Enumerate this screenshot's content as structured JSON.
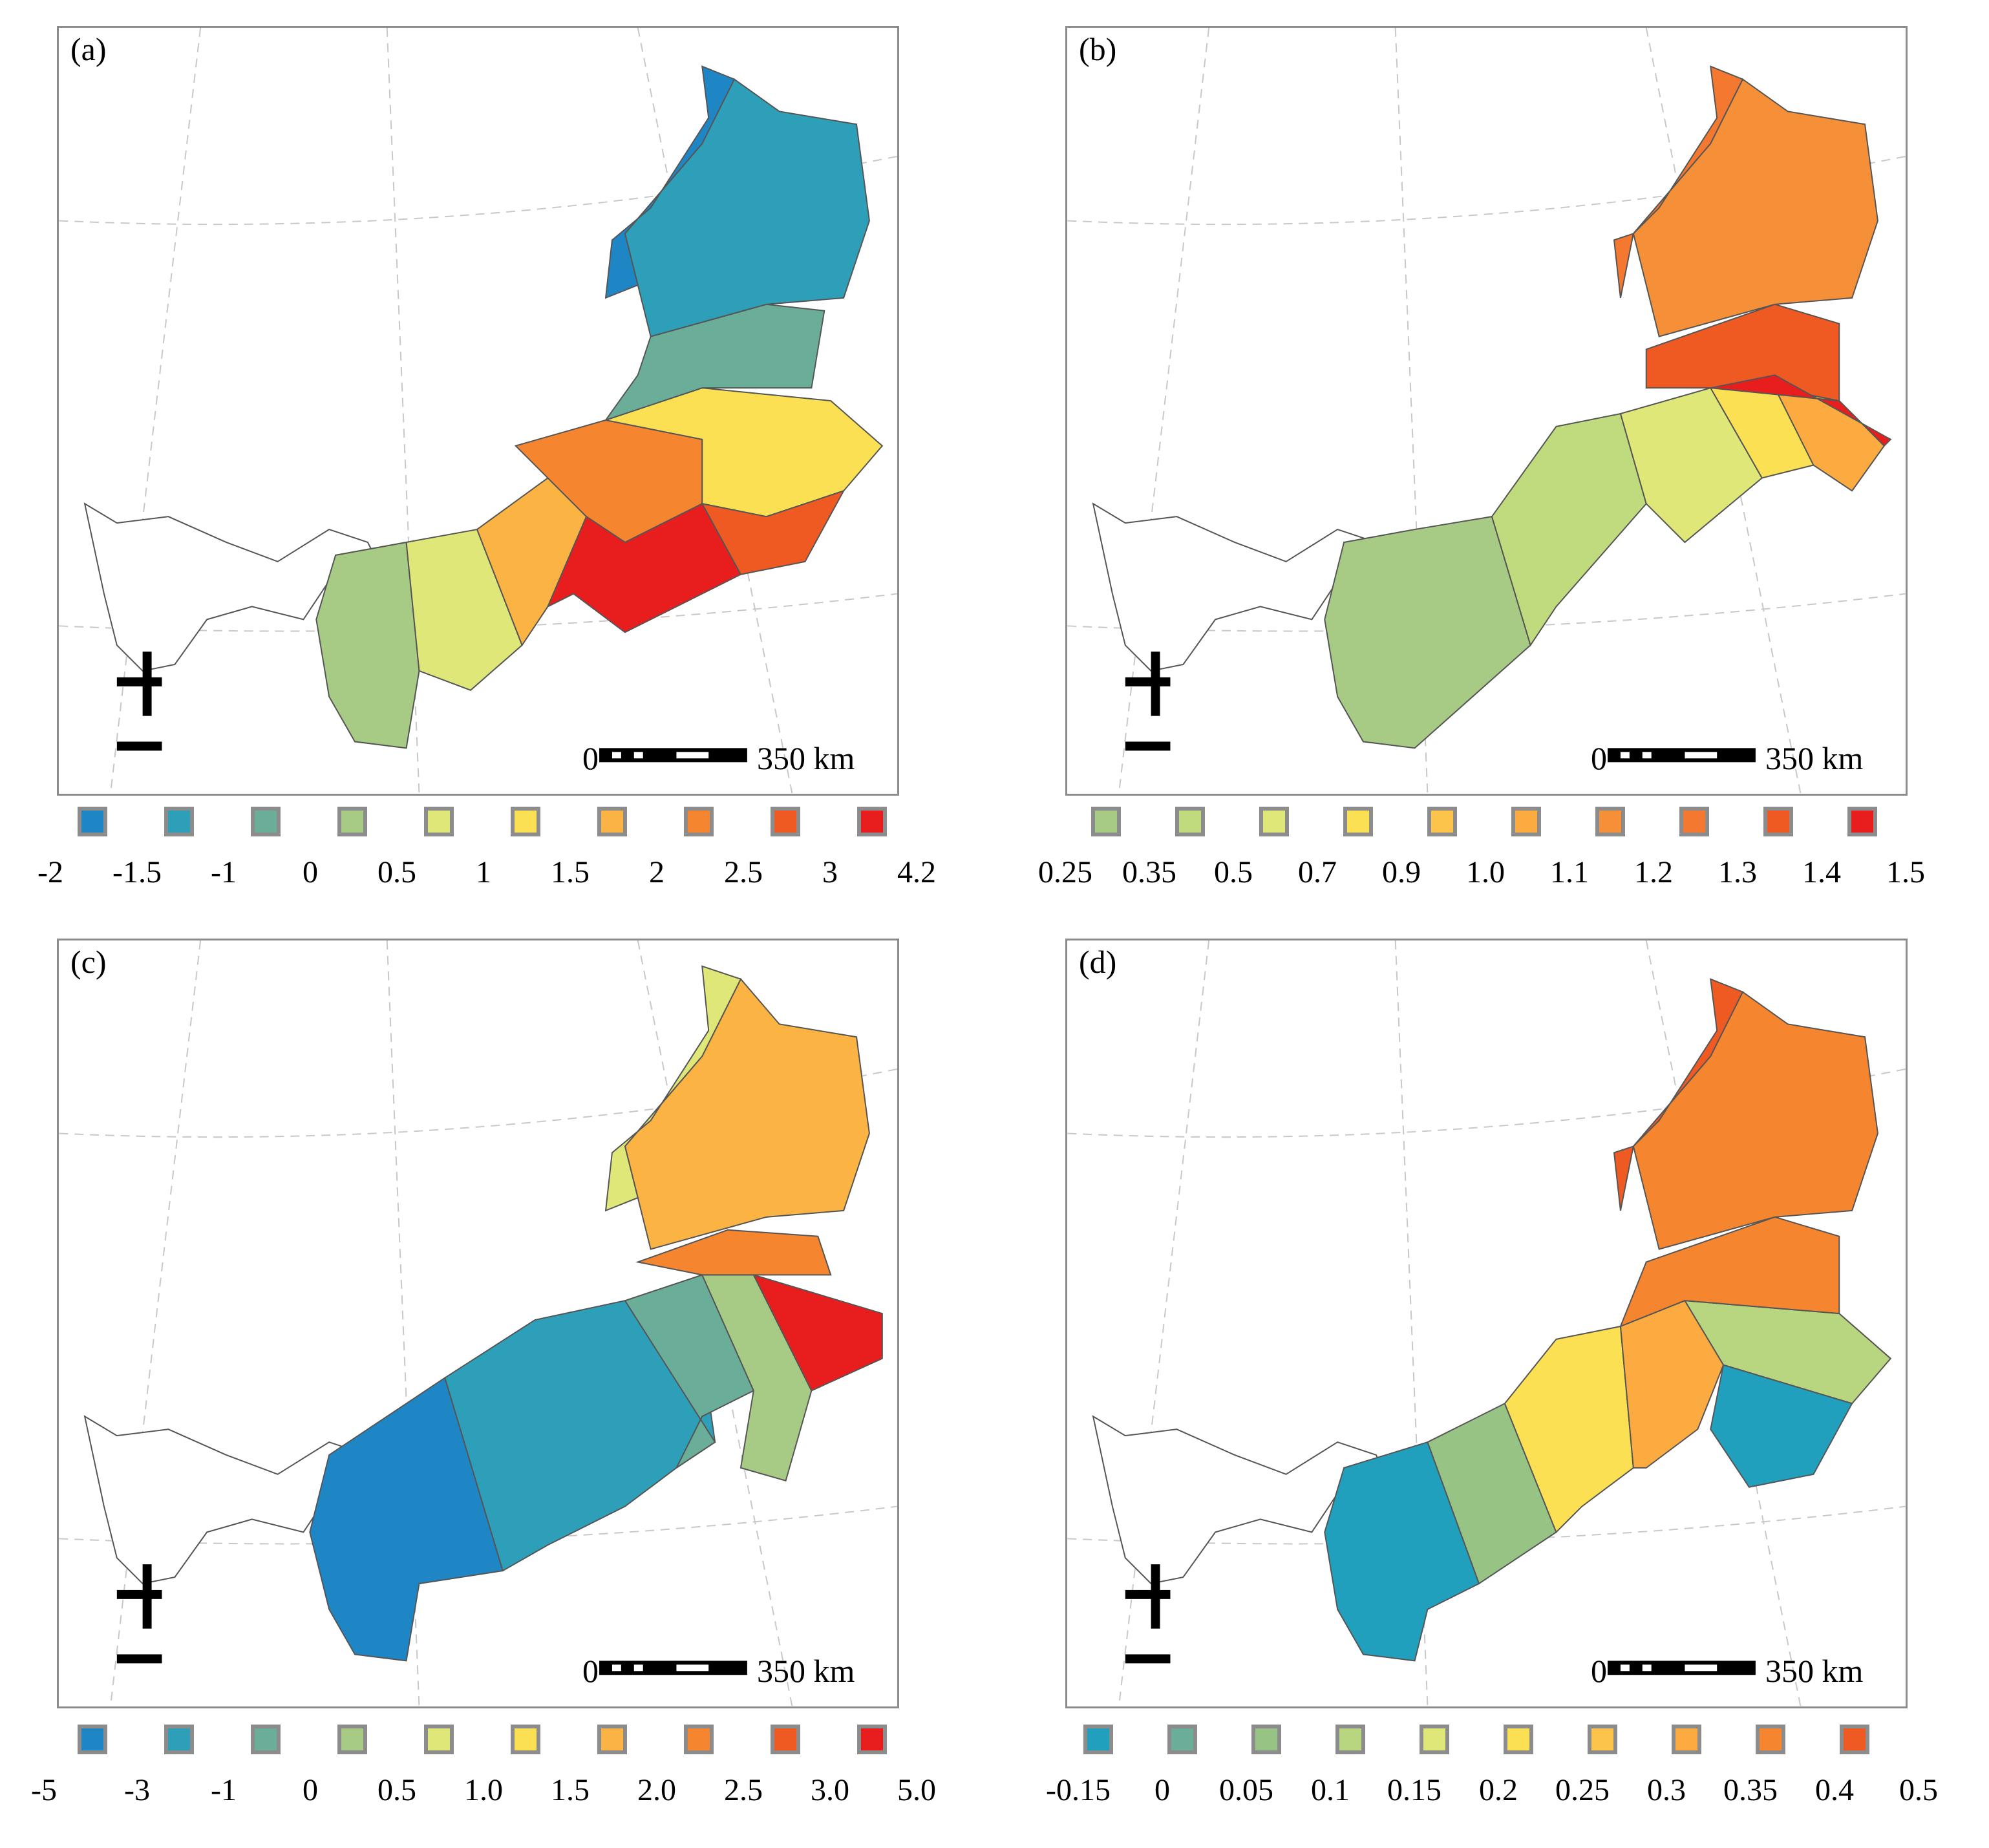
{
  "figure": {
    "panels": [
      {
        "label": "(a)",
        "scale": {
          "start": "0",
          "end": "350 km"
        },
        "colors": [
          "#1f86c6",
          "#2e9fb8",
          "#6aae9a",
          "#a7cb84",
          "#dfe779",
          "#fce053",
          "#fbb343",
          "#f5862f",
          "#ef5a22",
          "#e81e1e"
        ],
        "ticks": [
          "-2",
          "-1.5",
          "-1",
          "0",
          "0.5",
          "1",
          "1.5",
          "2",
          "2.5",
          "3",
          "4.2"
        ]
      },
      {
        "label": "(b)",
        "scale": {
          "start": "0",
          "end": "350 km"
        },
        "colors": [
          "#a7cb84",
          "#bfdb7d",
          "#dfe779",
          "#fce053",
          "#fcc44a",
          "#fbab40",
          "#f69038",
          "#f4782f",
          "#ef5a22",
          "#e81e1e"
        ],
        "ticks": [
          "0.25",
          "0.35",
          "0.5",
          "0.7",
          "0.9",
          "1.0",
          "1.1",
          "1.2",
          "1.3",
          "1.4",
          "1.5"
        ]
      },
      {
        "label": "(c)",
        "scale": {
          "start": "0",
          "end": "350 km"
        },
        "colors": [
          "#1f86c6",
          "#2e9fb8",
          "#6aae9a",
          "#a7cb84",
          "#dfe779",
          "#fce053",
          "#fbb343",
          "#f5862f",
          "#ef5a22",
          "#e81e1e"
        ],
        "ticks": [
          "-5",
          "-3",
          "-1",
          "0",
          "0.5",
          "1.0",
          "1.5",
          "2.0",
          "2.5",
          "3.0",
          "5.0"
        ]
      },
      {
        "label": "(d)",
        "scale": {
          "start": "0",
          "end": "350 km"
        },
        "colors": [
          "#21a0bd",
          "#6aae9a",
          "#97c485",
          "#b8d67f",
          "#dfe779",
          "#fce053",
          "#fcc44a",
          "#fbab40",
          "#f5862f",
          "#ef5a22"
        ],
        "ticks": [
          "-0.15",
          "0",
          "0.05",
          "0.1",
          "0.15",
          "0.2",
          "0.25",
          "0.3",
          "0.35",
          "0.4",
          "0.5"
        ]
      }
    ]
  }
}
